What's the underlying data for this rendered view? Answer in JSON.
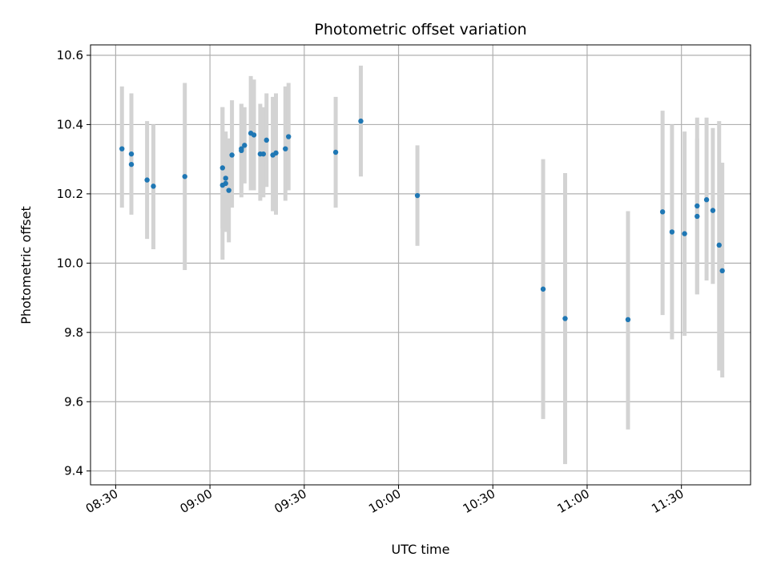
{
  "chart_data": {
    "type": "scatter",
    "title": "Photometric offset variation",
    "xlabel": "UTC time",
    "ylabel": "Photometric offset",
    "xlim": [
      "08:22",
      "11:52"
    ],
    "ylim": [
      9.36,
      10.63
    ],
    "x_ticks": [
      "08:30",
      "09:00",
      "09:30",
      "10:00",
      "10:30",
      "11:00",
      "11:30"
    ],
    "y_ticks": [
      9.4,
      9.6,
      9.8,
      10.0,
      10.2,
      10.4,
      10.6
    ],
    "grid": true,
    "colors": {
      "point": "#1f77b4",
      "errorbar": "#d3d3d3",
      "grid": "#b0b0b0",
      "axis": "#000000"
    },
    "points": [
      {
        "x": "08:32",
        "y": 10.33,
        "lo": 10.16,
        "hi": 10.51
      },
      {
        "x": "08:35",
        "y": 10.315,
        "lo": 10.14,
        "hi": 10.49
      },
      {
        "x": "08:35",
        "y": 10.285,
        "lo": 10.16,
        "hi": 10.43
      },
      {
        "x": "08:40",
        "y": 10.24,
        "lo": 10.07,
        "hi": 10.41
      },
      {
        "x": "08:42",
        "y": 10.222,
        "lo": 10.04,
        "hi": 10.4
      },
      {
        "x": "08:52",
        "y": 10.25,
        "lo": 9.98,
        "hi": 10.52
      },
      {
        "x": "09:04",
        "y": 10.225,
        "lo": 10.01,
        "hi": 10.45
      },
      {
        "x": "09:04",
        "y": 10.275,
        "lo": 10.1,
        "hi": 10.45
      },
      {
        "x": "09:05",
        "y": 10.245,
        "lo": 10.11,
        "hi": 10.38
      },
      {
        "x": "09:05",
        "y": 10.23,
        "lo": 10.09,
        "hi": 10.37
      },
      {
        "x": "09:06",
        "y": 10.21,
        "lo": 10.06,
        "hi": 10.36
      },
      {
        "x": "09:07",
        "y": 10.312,
        "lo": 10.16,
        "hi": 10.47
      },
      {
        "x": "09:10",
        "y": 10.325,
        "lo": 10.19,
        "hi": 10.46
      },
      {
        "x": "09:10",
        "y": 10.33,
        "lo": 10.21,
        "hi": 10.46
      },
      {
        "x": "09:11",
        "y": 10.34,
        "lo": 10.23,
        "hi": 10.45
      },
      {
        "x": "09:13",
        "y": 10.375,
        "lo": 10.21,
        "hi": 10.54
      },
      {
        "x": "09:14",
        "y": 10.37,
        "lo": 10.21,
        "hi": 10.53
      },
      {
        "x": "09:16",
        "y": 10.315,
        "lo": 10.18,
        "hi": 10.46
      },
      {
        "x": "09:17",
        "y": 10.315,
        "lo": 10.19,
        "hi": 10.45
      },
      {
        "x": "09:18",
        "y": 10.355,
        "lo": 10.22,
        "hi": 10.49
      },
      {
        "x": "09:20",
        "y": 10.312,
        "lo": 10.15,
        "hi": 10.48
      },
      {
        "x": "09:21",
        "y": 10.318,
        "lo": 10.14,
        "hi": 10.49
      },
      {
        "x": "09:24",
        "y": 10.33,
        "lo": 10.18,
        "hi": 10.51
      },
      {
        "x": "09:25",
        "y": 10.365,
        "lo": 10.21,
        "hi": 10.52
      },
      {
        "x": "09:40",
        "y": 10.32,
        "lo": 10.16,
        "hi": 10.48
      },
      {
        "x": "09:48",
        "y": 10.41,
        "lo": 10.25,
        "hi": 10.57
      },
      {
        "x": "10:06",
        "y": 10.195,
        "lo": 10.05,
        "hi": 10.34
      },
      {
        "x": "10:46",
        "y": 9.925,
        "lo": 9.55,
        "hi": 10.3
      },
      {
        "x": "10:53",
        "y": 9.84,
        "lo": 9.42,
        "hi": 10.26
      },
      {
        "x": "11:13",
        "y": 9.837,
        "lo": 9.52,
        "hi": 10.15
      },
      {
        "x": "11:24",
        "y": 10.148,
        "lo": 9.85,
        "hi": 10.44
      },
      {
        "x": "11:27",
        "y": 10.09,
        "lo": 9.78,
        "hi": 10.4
      },
      {
        "x": "11:31",
        "y": 10.085,
        "lo": 9.79,
        "hi": 10.38
      },
      {
        "x": "11:35",
        "y": 10.165,
        "lo": 9.91,
        "hi": 10.42
      },
      {
        "x": "11:35",
        "y": 10.135,
        "lo": 9.91,
        "hi": 10.36
      },
      {
        "x": "11:38",
        "y": 10.183,
        "lo": 9.95,
        "hi": 10.42
      },
      {
        "x": "11:40",
        "y": 10.152,
        "lo": 9.94,
        "hi": 10.39
      },
      {
        "x": "11:42",
        "y": 10.052,
        "lo": 9.69,
        "hi": 10.41
      },
      {
        "x": "11:43",
        "y": 9.978,
        "lo": 9.67,
        "hi": 10.29
      }
    ]
  }
}
